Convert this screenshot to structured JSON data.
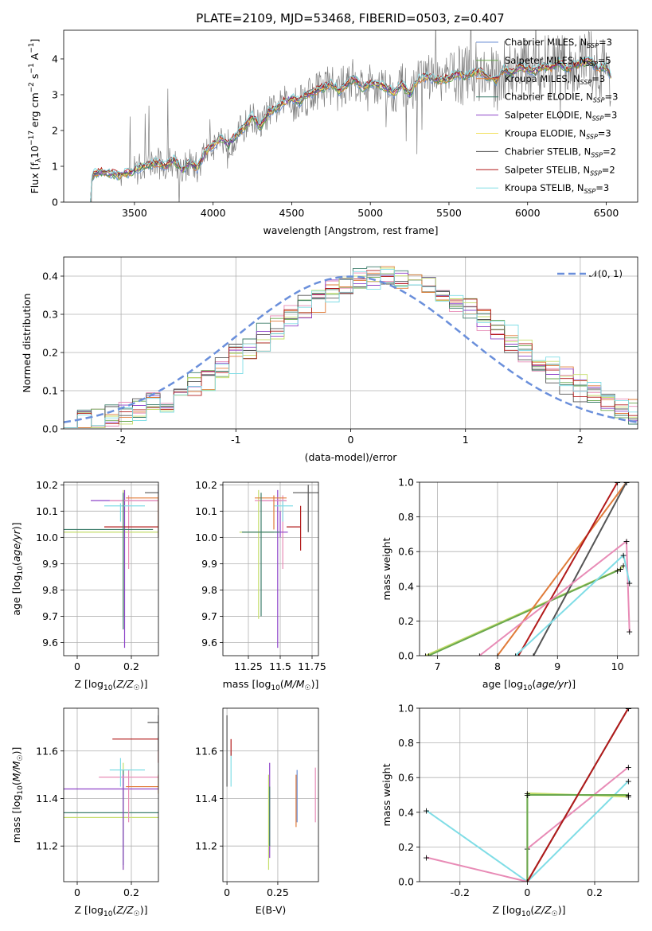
{
  "title": "PLATE=2109, MJD=53468, FIBERID=0503, z=0.407",
  "colors": {
    "Chabrier MILES": "#6b8fd6",
    "Salpeter MILES": "#6aa84f",
    "Kroupa MILES": "#e07b39",
    "Chabrier ELODIE": "#3d7d6b",
    "Salpeter ELODIE": "#8e44c9",
    "Kroupa ELODIE": "#f1e05a",
    "Chabrier STELIB": "#555555",
    "Salpeter STELIB": "#b21a1a",
    "Kroupa STELIB": "#80dde6",
    "data": "#808080",
    "gaussian": "#6a8fdb",
    "pink": "#e88bb6",
    "lime": "#c5dd6a"
  },
  "chart_data": [
    {
      "type": "line",
      "id": "spectrum",
      "xlabel": "wavelength [Angstrom, rest frame]",
      "ylabel": "Flux [f_λ 10^-17 erg cm^-2 s^-1 A^-1]",
      "xlim": [
        3050,
        6700
      ],
      "ylim": [
        0,
        4.8
      ],
      "xticks": [
        3500,
        4000,
        4500,
        5000,
        5500,
        6000,
        6500
      ],
      "yticks": [
        0,
        1,
        2,
        3,
        4
      ],
      "grid": false,
      "legend_position": "top-right",
      "legend": [
        {
          "label": "Chabrier MILES, N",
          "sub": "SSP",
          "suffix": "=3",
          "color": "#6b8fd6"
        },
        {
          "label": "Salpeter MILES, N",
          "sub": "SSP",
          "suffix": "=5",
          "color": "#6aa84f"
        },
        {
          "label": "Kroupa MILES, N",
          "sub": "SSP",
          "suffix": "=3",
          "color": "#e07b39"
        },
        {
          "label": "Chabrier ELODIE, N",
          "sub": "SSP",
          "suffix": "=3",
          "color": "#3d7d6b"
        },
        {
          "label": "Salpeter ELODIE, N",
          "sub": "SSP",
          "suffix": "=3",
          "color": "#8e44c9"
        },
        {
          "label": "Kroupa ELODIE, N",
          "sub": "SSP",
          "suffix": "=3",
          "color": "#f1e05a"
        },
        {
          "label": "Chabrier STELIB, N",
          "sub": "SSP",
          "suffix": "=2",
          "color": "#555555"
        },
        {
          "label": "Salpeter STELIB, N",
          "sub": "SSP",
          "suffix": "=2",
          "color": "#b21a1a"
        },
        {
          "label": "Kroupa STELIB, N",
          "sub": "SSP",
          "suffix": "=3",
          "color": "#80dde6"
        }
      ],
      "model_continuum": {
        "x": [
          3220,
          3250,
          3300,
          3350,
          3400,
          3450,
          3500,
          3550,
          3600,
          3650,
          3700,
          3750,
          3800,
          3850,
          3900,
          3950,
          4000,
          4050,
          4100,
          4150,
          4200,
          4250,
          4300,
          4350,
          4400,
          4450,
          4500,
          4550,
          4600,
          4650,
          4700,
          4750,
          4800,
          4850,
          4900,
          4950,
          5000,
          5050,
          5100,
          5150,
          5200,
          5250,
          5300,
          5350,
          5400,
          5450,
          5500,
          5550,
          5600,
          5650,
          5700,
          5750,
          5800,
          5850,
          5900,
          5950,
          6000,
          6050,
          6100,
          6150,
          6200,
          6250,
          6300,
          6350,
          6400,
          6450,
          6500,
          6530
        ],
        "y": [
          0.7,
          0.8,
          0.85,
          0.8,
          0.75,
          0.8,
          0.9,
          1.0,
          1.05,
          1.1,
          1.0,
          1.2,
          0.9,
          1.1,
          0.95,
          1.4,
          1.6,
          1.8,
          1.6,
          1.9,
          2.1,
          2.4,
          2.1,
          2.5,
          2.6,
          2.8,
          2.9,
          2.8,
          3.0,
          3.1,
          3.2,
          3.3,
          3.1,
          3.3,
          3.45,
          3.2,
          3.3,
          3.3,
          3.2,
          3.05,
          3.3,
          3.0,
          3.4,
          3.5,
          3.45,
          3.4,
          3.45,
          3.6,
          3.5,
          3.6,
          3.65,
          3.5,
          3.4,
          3.7,
          3.6,
          3.8,
          3.7,
          3.65,
          3.8,
          3.75,
          3.9,
          3.7,
          3.8,
          3.9,
          3.95,
          3.7,
          3.8,
          3.5
        ]
      }
    },
    {
      "type": "histogram",
      "id": "residuals",
      "xlabel": "(data-model)/error",
      "ylabel": "Normed distribution",
      "xlim": [
        -2.5,
        2.5
      ],
      "ylim": [
        0,
        0.45
      ],
      "xticks": [
        -2,
        -1,
        0,
        1,
        2
      ],
      "yticks": [
        0.0,
        0.1,
        0.2,
        0.3,
        0.4
      ],
      "grid": true,
      "legend_position": "top-right",
      "legend": [
        {
          "label": "𝒩(0, 1)",
          "color": "#6a8fdb",
          "style": "dashed"
        }
      ]
    },
    {
      "type": "errorbar",
      "id": "age-vs-Z",
      "xlabel": "Z [log10(Z/Z_sun)]",
      "ylabel": "age [log10(age/yr)]",
      "xlim": [
        -0.05,
        0.3
      ],
      "ylim": [
        9.55,
        10.21
      ],
      "xticks": [
        0.0,
        0.2
      ],
      "yticks": [
        9.6,
        9.7,
        9.8,
        9.9,
        10.0,
        10.1,
        10.2
      ],
      "grid": true
    },
    {
      "type": "errorbar",
      "id": "age-vs-mass",
      "xlabel": "mass [log10(M/M_sun)]",
      "xlim": [
        11.05,
        11.8
      ],
      "ylim": [
        9.55,
        10.21
      ],
      "xticks": [
        11.25,
        11.5,
        11.75
      ],
      "yticks": [
        9.6,
        9.7,
        9.8,
        9.9,
        10.0,
        10.1,
        10.2
      ],
      "grid": true
    },
    {
      "type": "line",
      "id": "massweight-vs-age",
      "xlabel": "age [log10(age/yr)]",
      "ylabel": "mass weight",
      "xlim": [
        6.7,
        10.35
      ],
      "ylim": [
        0,
        1
      ],
      "xticks": [
        7,
        8,
        9,
        10
      ],
      "yticks": [
        0.0,
        0.2,
        0.4,
        0.6,
        0.8,
        1.0
      ],
      "grid": true
    },
    {
      "type": "errorbar",
      "id": "mass-vs-Z",
      "xlabel": "Z [log10(Z/Z_sun)]",
      "ylabel": "mass [log10(M/M_sun)]",
      "xlim": [
        -0.05,
        0.3
      ],
      "ylim": [
        11.05,
        11.78
      ],
      "xticks": [
        0.0,
        0.2
      ],
      "yticks": [
        11.2,
        11.4,
        11.6
      ],
      "grid": true
    },
    {
      "type": "errorbar",
      "id": "mass-vs-ebv",
      "xlabel": "E(B-V)",
      "xlim": [
        -0.02,
        0.45
      ],
      "ylim": [
        11.05,
        11.78
      ],
      "xticks": [
        0.0,
        0.25
      ],
      "yticks": [
        11.2,
        11.4,
        11.6
      ],
      "grid": true
    },
    {
      "type": "line",
      "id": "massweight-vs-Z",
      "xlabel": "Z [log10(Z/Z_sun)]",
      "ylabel": "mass weight",
      "xlim": [
        -0.32,
        0.33
      ],
      "ylim": [
        0,
        1
      ],
      "xticks": [
        -0.2,
        0.0,
        0.2
      ],
      "yticks": [
        0.0,
        0.2,
        0.4,
        0.6,
        0.8,
        1.0
      ],
      "grid": true
    }
  ]
}
